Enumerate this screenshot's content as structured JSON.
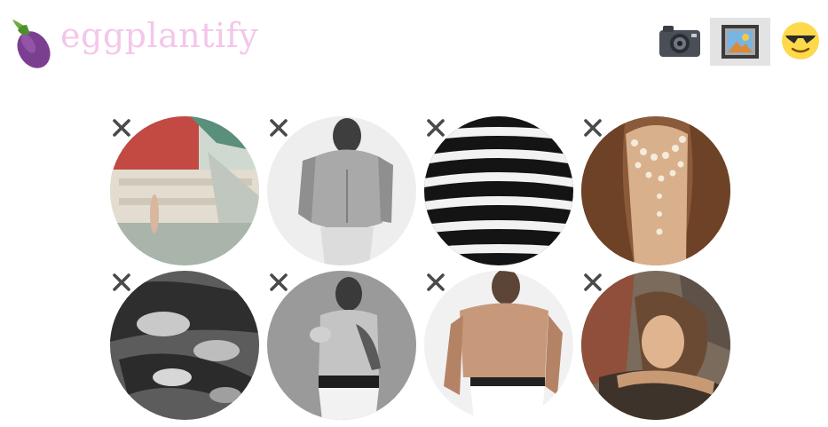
{
  "app": {
    "brand": "eggplantify",
    "brand_color": "#f4c6ea",
    "logo_icon": "eggplant-icon"
  },
  "nav": {
    "items": [
      {
        "icon": "camera-icon"
      },
      {
        "icon": "picture-icon",
        "selected": true
      },
      {
        "icon": "sunglasses-smiley-icon"
      }
    ]
  },
  "gallery": {
    "remove_icon": "close-icon",
    "items": [
      {
        "theme": "figure-on-temple-steps"
      },
      {
        "theme": "shirtless-man-bw"
      },
      {
        "theme": "striped-shadow-torso"
      },
      {
        "theme": "pearl-necklaces"
      },
      {
        "theme": "figures-group-bw"
      },
      {
        "theme": "tattooed-man-bw"
      },
      {
        "theme": "shirtless-man-color"
      },
      {
        "theme": "tattooed-woman"
      }
    ]
  }
}
